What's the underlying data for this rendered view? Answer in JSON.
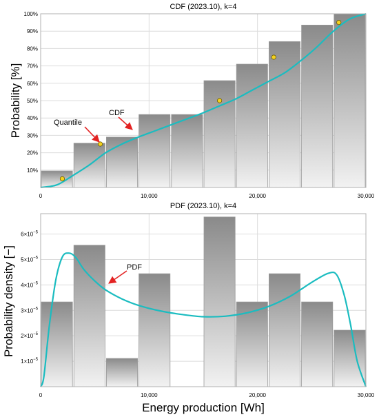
{
  "chart_data": [
    {
      "type": "bar",
      "title": "CDF (2023.10), k=4",
      "xlabel": "",
      "ylabel": "Probability [%]",
      "xlim": [
        0,
        30000
      ],
      "ylim": [
        0,
        100
      ],
      "x_ticks": [
        0,
        10000,
        20000,
        30000
      ],
      "x_tick_labels": [
        "0",
        "10,000",
        "20,000",
        "30,000"
      ],
      "y_ticks": [
        10,
        20,
        30,
        40,
        50,
        60,
        70,
        80,
        90,
        100
      ],
      "y_tick_labels": [
        "10%",
        "20%",
        "30%",
        "40%",
        "50%",
        "60%",
        "70%",
        "80%",
        "90%",
        "100%"
      ],
      "grid": true,
      "bin_edges": [
        0,
        3000,
        6000,
        9000,
        12000,
        15000,
        18000,
        21000,
        24000,
        27000,
        30000
      ],
      "bars": [
        9.5,
        25.5,
        29,
        42,
        42,
        61.5,
        71,
        84,
        93.5,
        100
      ],
      "curve_label": "CDF",
      "curve_color": "#1bbcc0",
      "curve": [
        [
          0,
          0
        ],
        [
          1500,
          1.5
        ],
        [
          3000,
          7
        ],
        [
          4500,
          13
        ],
        [
          6000,
          20
        ],
        [
          7500,
          25
        ],
        [
          9000,
          29
        ],
        [
          10500,
          32.5
        ],
        [
          12000,
          36
        ],
        [
          13500,
          39.5
        ],
        [
          15000,
          43
        ],
        [
          16500,
          47
        ],
        [
          18000,
          51
        ],
        [
          19500,
          56
        ],
        [
          21000,
          61
        ],
        [
          22500,
          66
        ],
        [
          24000,
          73
        ],
        [
          25500,
          81
        ],
        [
          27000,
          90
        ],
        [
          28500,
          97
        ],
        [
          30000,
          100
        ]
      ],
      "points_label": "Quantile",
      "point_color": "#f4d21f",
      "points": [
        [
          2000,
          5
        ],
        [
          5500,
          25
        ],
        [
          16500,
          50
        ],
        [
          21500,
          75
        ],
        [
          27500,
          95
        ]
      ]
    },
    {
      "type": "bar",
      "title": "PDF (2023.10), k=4",
      "xlabel": "Energy production [Wh]",
      "ylabel": "Probability density [−]",
      "xlim": [
        0,
        30000
      ],
      "ylim": [
        0,
        6.8e-05
      ],
      "x_ticks": [
        0,
        10000,
        20000,
        30000
      ],
      "x_tick_labels": [
        "0",
        "10,000",
        "20,000",
        "30,000"
      ],
      "y_ticks": [
        1e-05,
        2e-05,
        3e-05,
        4e-05,
        5e-05,
        6e-05
      ],
      "y_tick_bases": [
        "1×10",
        "2×10",
        "3×10",
        "4×10",
        "5×10",
        "6×10"
      ],
      "y_tick_exponent": "−5",
      "grid": true,
      "bin_edges": [
        0,
        3000,
        6000,
        9000,
        12000,
        15000,
        18000,
        21000,
        24000,
        27000,
        30000
      ],
      "bars": [
        3.33e-05,
        5.56e-05,
        1.11e-05,
        4.44e-05,
        0,
        6.67e-05,
        3.33e-05,
        4.44e-05,
        3.33e-05,
        2.22e-05
      ],
      "curve_label": "PDF",
      "curve_color": "#1bbcc0",
      "curve": [
        [
          0,
          0
        ],
        [
          300,
          4e-06
        ],
        [
          800,
          2.4e-05
        ],
        [
          1400,
          4.2e-05
        ],
        [
          2000,
          5.1e-05
        ],
        [
          2600,
          5.25e-05
        ],
        [
          3200,
          5.1e-05
        ],
        [
          4000,
          4.6e-05
        ],
        [
          5000,
          4.15e-05
        ],
        [
          6000,
          3.8e-05
        ],
        [
          7500,
          3.45e-05
        ],
        [
          9000,
          3.2e-05
        ],
        [
          11000,
          2.98e-05
        ],
        [
          13000,
          2.84e-05
        ],
        [
          15000,
          2.75e-05
        ],
        [
          17000,
          2.77e-05
        ],
        [
          19000,
          2.9e-05
        ],
        [
          21000,
          3.15e-05
        ],
        [
          23000,
          3.55e-05
        ],
        [
          25000,
          4.1e-05
        ],
        [
          26500,
          4.45e-05
        ],
        [
          27300,
          4.4e-05
        ],
        [
          28000,
          3.6e-05
        ],
        [
          28600,
          2.4e-05
        ],
        [
          29200,
          1e-05
        ],
        [
          30000,
          0
        ]
      ]
    }
  ]
}
